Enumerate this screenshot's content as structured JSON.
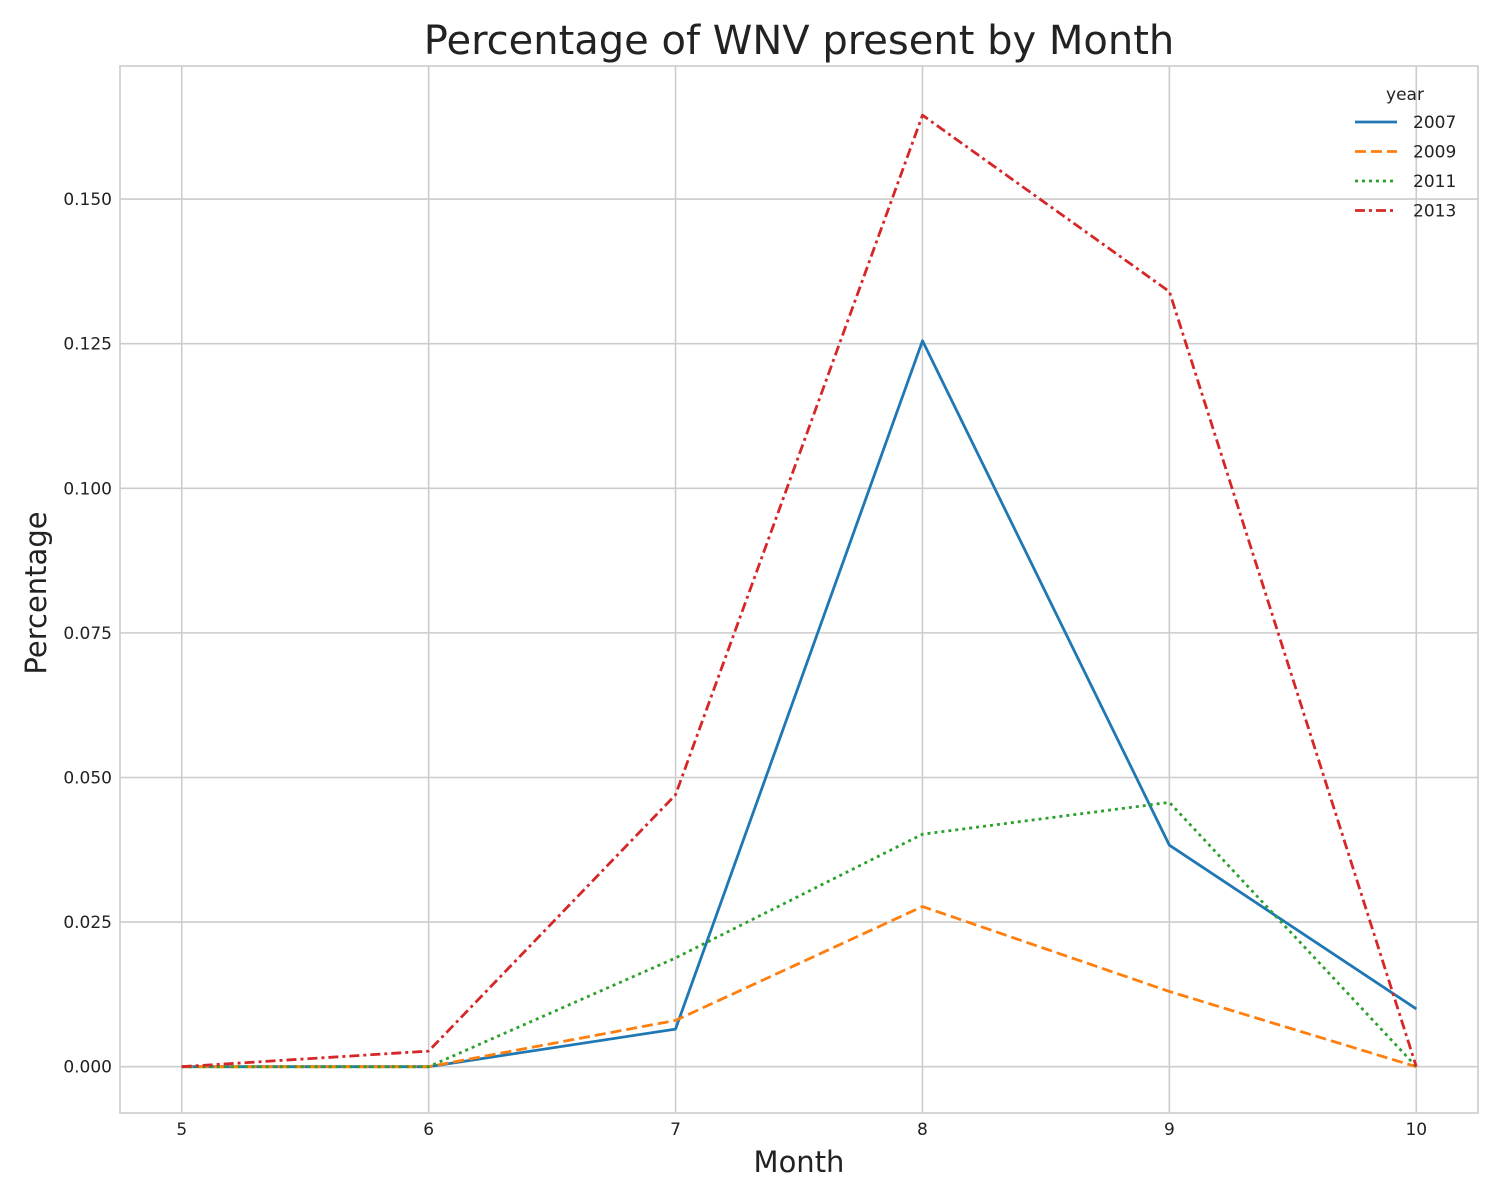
{
  "chart_data": {
    "type": "line",
    "title": "Percentage of WNV present by Month",
    "xlabel": "Month",
    "ylabel": "Percentage",
    "x": [
      5,
      6,
      7,
      8,
      9,
      10
    ],
    "xticks": [
      "5",
      "6",
      "7",
      "8",
      "9",
      "10"
    ],
    "yticks": [
      "0.000",
      "0.025",
      "0.050",
      "0.075",
      "0.100",
      "0.125",
      "0.150"
    ],
    "xlim": [
      4.75,
      10.25
    ],
    "ylim": [
      -0.008,
      0.173
    ],
    "grid": true,
    "legend": {
      "title": "year",
      "placement": "top-right"
    },
    "series": [
      {
        "name": "2007",
        "color": "#1f77b4",
        "dash": "solid",
        "values": [
          0.0,
          0.0,
          0.0065,
          0.1255,
          0.0383,
          0.01
        ]
      },
      {
        "name": "2009",
        "color": "#ff7f0e",
        "dash": "dashed",
        "values": [
          0.0,
          0.0,
          0.008,
          0.0277,
          0.013,
          0.0
        ]
      },
      {
        "name": "2011",
        "color": "#2ca02c",
        "dash": "dotted",
        "values": [
          0.0,
          0.0,
          0.0188,
          0.0402,
          0.0457,
          0.0
        ]
      },
      {
        "name": "2013",
        "color": "#d62728",
        "dash": "dashdot",
        "values": [
          0.0,
          0.0027,
          0.047,
          0.1645,
          0.134,
          0.0
        ]
      }
    ]
  }
}
